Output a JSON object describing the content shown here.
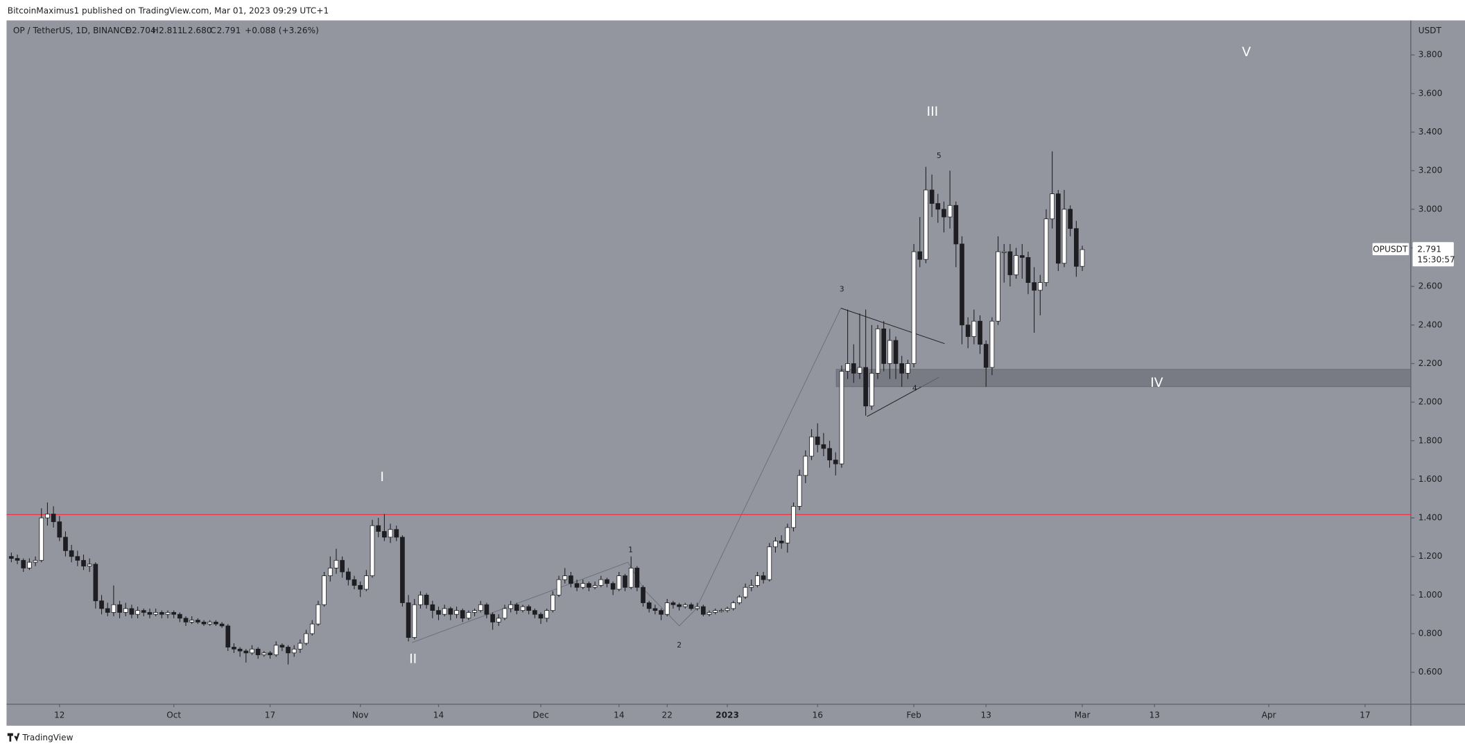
{
  "chart_data": {
    "type": "candlestick",
    "published": "BitcoinMaximus1 published on TradingView.com, Mar 01, 2023 09:29 UTC+1",
    "symbol": "OP / TetherUS, 1D, BINANCE",
    "legend": {
      "o": "O",
      "open": "2.704",
      "h": "H",
      "high": "2.811",
      "l": "L",
      "low": "2.680",
      "c": "C",
      "close": "2.791",
      "change": "+0.088 (+3.26%)"
    },
    "currency": "USDT",
    "ticker": "OPUSDT",
    "countdown": "15:30:57",
    "brand": "TradingView",
    "up_color": "#ffffff",
    "down_color": "#1e1e22",
    "ylim": [
      0.434,
      3.979
    ],
    "yticks": [
      {
        "value": 0.6,
        "label": "0.600"
      },
      {
        "value": 0.8,
        "label": "0.800"
      },
      {
        "value": 1.0,
        "label": "1.000"
      },
      {
        "value": 1.2,
        "label": "1.200"
      },
      {
        "value": 1.4,
        "label": "1.400"
      },
      {
        "value": 1.6,
        "label": "1.600"
      },
      {
        "value": 1.8,
        "label": "1.800"
      },
      {
        "value": 2.0,
        "label": "2.000"
      },
      {
        "value": 2.2,
        "label": "2.200"
      },
      {
        "value": 2.4,
        "label": "2.400"
      },
      {
        "value": 2.6,
        "label": "2.600"
      },
      {
        "value": 2.8,
        "label": "2.800"
      },
      {
        "value": 3.0,
        "label": "3.000"
      },
      {
        "value": 3.2,
        "label": "3.200"
      },
      {
        "value": 3.4,
        "label": "3.400"
      },
      {
        "value": 3.6,
        "label": "3.600"
      },
      {
        "value": 3.8,
        "label": "3.800"
      }
    ],
    "xlim": [
      -0.8,
      232.6
    ],
    "xticks": [
      {
        "value": 8,
        "label": "12"
      },
      {
        "value": 27,
        "label": "Oct"
      },
      {
        "value": 43,
        "label": "17"
      },
      {
        "value": 58,
        "label": "Nov"
      },
      {
        "value": 71,
        "label": "14"
      },
      {
        "value": 88,
        "label": "Dec"
      },
      {
        "value": 101,
        "label": "14"
      },
      {
        "value": 109,
        "label": "22"
      },
      {
        "value": 119,
        "label": "2023"
      },
      {
        "value": 134,
        "label": "16"
      },
      {
        "value": 150,
        "label": "Feb"
      },
      {
        "value": 162,
        "label": "13"
      },
      {
        "value": 178,
        "label": "Mar"
      },
      {
        "value": 190,
        "label": "13"
      },
      {
        "value": 209,
        "label": "Apr"
      },
      {
        "value": 225,
        "label": "17"
      }
    ],
    "resistance": 1.417,
    "resistance_color": "#f23645",
    "support_zone": [
      2.08,
      2.17
    ],
    "wave_labels": [
      "I",
      "II",
      "III",
      "IV",
      "V"
    ],
    "subwave_labels": [
      "1",
      "2",
      "3",
      "4",
      "5"
    ],
    "ohlc": [
      [
        1.2,
        1.22,
        1.17,
        1.19
      ],
      [
        1.19,
        1.21,
        1.16,
        1.18
      ],
      [
        1.18,
        1.19,
        1.12,
        1.14
      ],
      [
        1.14,
        1.19,
        1.13,
        1.17
      ],
      [
        1.17,
        1.2,
        1.15,
        1.18
      ],
      [
        1.18,
        1.45,
        1.17,
        1.4
      ],
      [
        1.4,
        1.48,
        1.36,
        1.42
      ],
      [
        1.42,
        1.46,
        1.35,
        1.38
      ],
      [
        1.38,
        1.41,
        1.28,
        1.3
      ],
      [
        1.3,
        1.33,
        1.2,
        1.23
      ],
      [
        1.23,
        1.26,
        1.17,
        1.2
      ],
      [
        1.2,
        1.23,
        1.15,
        1.18
      ],
      [
        1.18,
        1.21,
        1.13,
        1.15
      ],
      [
        1.15,
        1.19,
        1.12,
        1.16
      ],
      [
        1.16,
        1.17,
        0.93,
        0.97
      ],
      [
        0.97,
        1.0,
        0.9,
        0.93
      ],
      [
        0.93,
        0.96,
        0.89,
        0.91
      ],
      [
        0.91,
        1.05,
        0.89,
        0.95
      ],
      [
        0.95,
        0.97,
        0.88,
        0.91
      ],
      [
        0.91,
        0.96,
        0.89,
        0.93
      ],
      [
        0.93,
        0.95,
        0.88,
        0.9
      ],
      [
        0.9,
        0.94,
        0.88,
        0.92
      ],
      [
        0.92,
        0.93,
        0.89,
        0.91
      ],
      [
        0.91,
        0.93,
        0.88,
        0.9
      ],
      [
        0.9,
        0.93,
        0.89,
        0.91
      ],
      [
        0.91,
        0.92,
        0.88,
        0.9
      ],
      [
        0.9,
        0.92,
        0.88,
        0.91
      ],
      [
        0.91,
        0.92,
        0.88,
        0.9
      ],
      [
        0.9,
        0.91,
        0.86,
        0.88
      ],
      [
        0.88,
        0.89,
        0.84,
        0.86
      ],
      [
        0.86,
        0.89,
        0.85,
        0.87
      ],
      [
        0.87,
        0.88,
        0.85,
        0.86
      ],
      [
        0.86,
        0.87,
        0.84,
        0.85
      ],
      [
        0.85,
        0.87,
        0.84,
        0.86
      ],
      [
        0.86,
        0.87,
        0.84,
        0.85
      ],
      [
        0.85,
        0.86,
        0.83,
        0.84
      ],
      [
        0.84,
        0.85,
        0.71,
        0.73
      ],
      [
        0.73,
        0.75,
        0.7,
        0.72
      ],
      [
        0.72,
        0.73,
        0.68,
        0.71
      ],
      [
        0.71,
        0.72,
        0.65,
        0.7
      ],
      [
        0.7,
        0.74,
        0.69,
        0.72
      ],
      [
        0.72,
        0.73,
        0.67,
        0.69
      ],
      [
        0.69,
        0.71,
        0.68,
        0.7
      ],
      [
        0.7,
        0.71,
        0.67,
        0.69
      ],
      [
        0.69,
        0.76,
        0.68,
        0.74
      ],
      [
        0.74,
        0.75,
        0.71,
        0.73
      ],
      [
        0.73,
        0.74,
        0.64,
        0.7
      ],
      [
        0.7,
        0.74,
        0.68,
        0.72
      ],
      [
        0.72,
        0.77,
        0.7,
        0.75
      ],
      [
        0.75,
        0.82,
        0.74,
        0.8
      ],
      [
        0.8,
        0.87,
        0.79,
        0.85
      ],
      [
        0.85,
        0.97,
        0.84,
        0.95
      ],
      [
        0.95,
        1.12,
        0.94,
        1.1
      ],
      [
        1.1,
        1.2,
        1.07,
        1.14
      ],
      [
        1.14,
        1.24,
        1.11,
        1.18
      ],
      [
        1.18,
        1.2,
        1.09,
        1.12
      ],
      [
        1.12,
        1.14,
        1.05,
        1.08
      ],
      [
        1.08,
        1.1,
        1.03,
        1.05
      ],
      [
        1.05,
        1.07,
        0.99,
        1.03
      ],
      [
        1.03,
        1.13,
        1.02,
        1.1
      ],
      [
        1.1,
        1.39,
        1.09,
        1.36
      ],
      [
        1.36,
        1.4,
        1.3,
        1.33
      ],
      [
        1.33,
        1.42,
        1.28,
        1.3
      ],
      [
        1.3,
        1.37,
        1.27,
        1.34
      ],
      [
        1.34,
        1.36,
        1.28,
        1.3
      ],
      [
        1.3,
        1.31,
        0.94,
        0.96
      ],
      [
        0.96,
        1.0,
        0.76,
        0.78
      ],
      [
        0.78,
        0.98,
        0.77,
        0.95
      ],
      [
        0.95,
        1.02,
        0.93,
        1.0
      ],
      [
        1.0,
        1.01,
        0.93,
        0.95
      ],
      [
        0.95,
        0.97,
        0.88,
        0.92
      ],
      [
        0.92,
        0.94,
        0.87,
        0.9
      ],
      [
        0.9,
        0.95,
        0.89,
        0.93
      ],
      [
        0.93,
        0.94,
        0.87,
        0.9
      ],
      [
        0.9,
        0.94,
        0.88,
        0.92
      ],
      [
        0.92,
        0.93,
        0.86,
        0.88
      ],
      [
        0.88,
        0.92,
        0.87,
        0.91
      ],
      [
        0.91,
        0.93,
        0.89,
        0.92
      ],
      [
        0.92,
        0.97,
        0.91,
        0.95
      ],
      [
        0.95,
        0.96,
        0.88,
        0.9
      ],
      [
        0.9,
        0.91,
        0.82,
        0.86
      ],
      [
        0.86,
        0.9,
        0.84,
        0.88
      ],
      [
        0.88,
        0.95,
        0.87,
        0.93
      ],
      [
        0.93,
        0.97,
        0.91,
        0.95
      ],
      [
        0.95,
        0.96,
        0.9,
        0.92
      ],
      [
        0.92,
        0.95,
        0.91,
        0.94
      ],
      [
        0.94,
        0.95,
        0.9,
        0.92
      ],
      [
        0.92,
        0.93,
        0.88,
        0.9
      ],
      [
        0.9,
        0.91,
        0.85,
        0.88
      ],
      [
        0.88,
        0.93,
        0.86,
        0.92
      ],
      [
        0.92,
        1.02,
        0.91,
        1.0
      ],
      [
        1.0,
        1.1,
        0.99,
        1.08
      ],
      [
        1.08,
        1.14,
        1.06,
        1.1
      ],
      [
        1.1,
        1.12,
        1.04,
        1.06
      ],
      [
        1.06,
        1.08,
        1.02,
        1.04
      ],
      [
        1.04,
        1.08,
        1.03,
        1.06
      ],
      [
        1.06,
        1.07,
        1.02,
        1.04
      ],
      [
        1.04,
        1.07,
        1.03,
        1.05
      ],
      [
        1.05,
        1.1,
        1.04,
        1.08
      ],
      [
        1.08,
        1.09,
        1.04,
        1.06
      ],
      [
        1.06,
        1.07,
        1.0,
        1.03
      ],
      [
        1.03,
        1.12,
        1.02,
        1.1
      ],
      [
        1.1,
        1.11,
        1.02,
        1.04
      ],
      [
        1.04,
        1.2,
        1.03,
        1.14
      ],
      [
        1.14,
        1.15,
        1.02,
        1.04
      ],
      [
        1.04,
        1.05,
        0.94,
        0.96
      ],
      [
        0.96,
        0.97,
        0.91,
        0.93
      ],
      [
        0.93,
        0.95,
        0.9,
        0.92
      ],
      [
        0.92,
        0.93,
        0.87,
        0.9
      ],
      [
        0.9,
        0.98,
        0.89,
        0.96
      ],
      [
        0.96,
        0.97,
        0.93,
        0.95
      ],
      [
        0.95,
        0.96,
        0.92,
        0.94
      ],
      [
        0.94,
        0.96,
        0.93,
        0.95
      ],
      [
        0.95,
        0.96,
        0.92,
        0.93
      ],
      [
        0.93,
        0.96,
        0.92,
        0.94
      ],
      [
        0.94,
        0.95,
        0.89,
        0.9
      ],
      [
        0.9,
        0.92,
        0.89,
        0.91
      ],
      [
        0.91,
        0.93,
        0.9,
        0.92
      ],
      [
        0.92,
        0.93,
        0.91,
        0.92
      ],
      [
        0.92,
        0.94,
        0.91,
        0.93
      ],
      [
        0.93,
        0.97,
        0.92,
        0.96
      ],
      [
        0.96,
        1.0,
        0.95,
        0.99
      ],
      [
        0.99,
        1.06,
        0.98,
        1.04
      ],
      [
        1.04,
        1.08,
        1.02,
        1.05
      ],
      [
        1.05,
        1.12,
        1.04,
        1.1
      ],
      [
        1.1,
        1.12,
        1.06,
        1.08
      ],
      [
        1.08,
        1.27,
        1.07,
        1.25
      ],
      [
        1.25,
        1.3,
        1.22,
        1.28
      ],
      [
        1.28,
        1.31,
        1.24,
        1.27
      ],
      [
        1.27,
        1.37,
        1.22,
        1.35
      ],
      [
        1.35,
        1.48,
        1.33,
        1.46
      ],
      [
        1.46,
        1.65,
        1.44,
        1.62
      ],
      [
        1.62,
        1.75,
        1.58,
        1.72
      ],
      [
        1.72,
        1.86,
        1.7,
        1.82
      ],
      [
        1.82,
        1.89,
        1.74,
        1.78
      ],
      [
        1.78,
        1.84,
        1.72,
        1.76
      ],
      [
        1.76,
        1.8,
        1.66,
        1.7
      ],
      [
        1.7,
        1.74,
        1.62,
        1.68
      ],
      [
        1.68,
        2.19,
        1.66,
        2.16
      ],
      [
        2.16,
        2.48,
        2.12,
        2.2
      ],
      [
        2.2,
        2.3,
        2.1,
        2.15
      ],
      [
        2.15,
        2.46,
        2.12,
        2.18
      ],
      [
        2.18,
        2.48,
        1.93,
        1.98
      ],
      [
        1.98,
        2.4,
        1.96,
        2.15
      ],
      [
        2.15,
        2.4,
        2.12,
        2.38
      ],
      [
        2.38,
        2.42,
        2.16,
        2.2
      ],
      [
        2.2,
        2.38,
        2.12,
        2.32
      ],
      [
        2.32,
        2.34,
        2.12,
        2.2
      ],
      [
        2.2,
        2.24,
        2.08,
        2.15
      ],
      [
        2.15,
        2.22,
        2.12,
        2.2
      ],
      [
        2.2,
        2.82,
        2.18,
        2.78
      ],
      [
        2.78,
        2.96,
        2.7,
        2.74
      ],
      [
        2.74,
        3.22,
        2.72,
        3.1
      ],
      [
        3.1,
        3.18,
        2.96,
        3.03
      ],
      [
        3.03,
        3.08,
        2.93,
        3.0
      ],
      [
        3.0,
        3.04,
        2.88,
        2.96
      ],
      [
        2.96,
        3.2,
        2.9,
        3.02
      ],
      [
        3.02,
        3.04,
        2.7,
        2.82
      ],
      [
        2.82,
        2.86,
        2.3,
        2.4
      ],
      [
        2.4,
        2.44,
        2.28,
        2.34
      ],
      [
        2.34,
        2.48,
        2.3,
        2.42
      ],
      [
        2.42,
        2.45,
        2.25,
        2.3
      ],
      [
        2.3,
        2.32,
        2.08,
        2.18
      ],
      [
        2.18,
        2.44,
        2.14,
        2.42
      ],
      [
        2.42,
        2.86,
        2.4,
        2.78
      ],
      [
        2.78,
        2.82,
        2.62,
        2.78
      ],
      [
        2.78,
        2.82,
        2.6,
        2.66
      ],
      [
        2.66,
        2.8,
        2.64,
        2.76
      ],
      [
        2.76,
        2.82,
        2.64,
        2.75
      ],
      [
        2.75,
        2.78,
        2.56,
        2.62
      ],
      [
        2.62,
        2.7,
        2.36,
        2.58
      ],
      [
        2.58,
        2.66,
        2.45,
        2.62
      ],
      [
        2.62,
        3.0,
        2.6,
        2.95
      ],
      [
        2.95,
        3.3,
        2.9,
        3.08
      ],
      [
        3.08,
        3.1,
        2.68,
        2.72
      ],
      [
        2.72,
        3.1,
        2.7,
        3.0
      ],
      [
        3.0,
        3.02,
        2.86,
        2.9
      ],
      [
        2.9,
        2.94,
        2.65,
        2.704
      ],
      [
        2.704,
        2.811,
        2.68,
        2.791
      ]
    ]
  }
}
